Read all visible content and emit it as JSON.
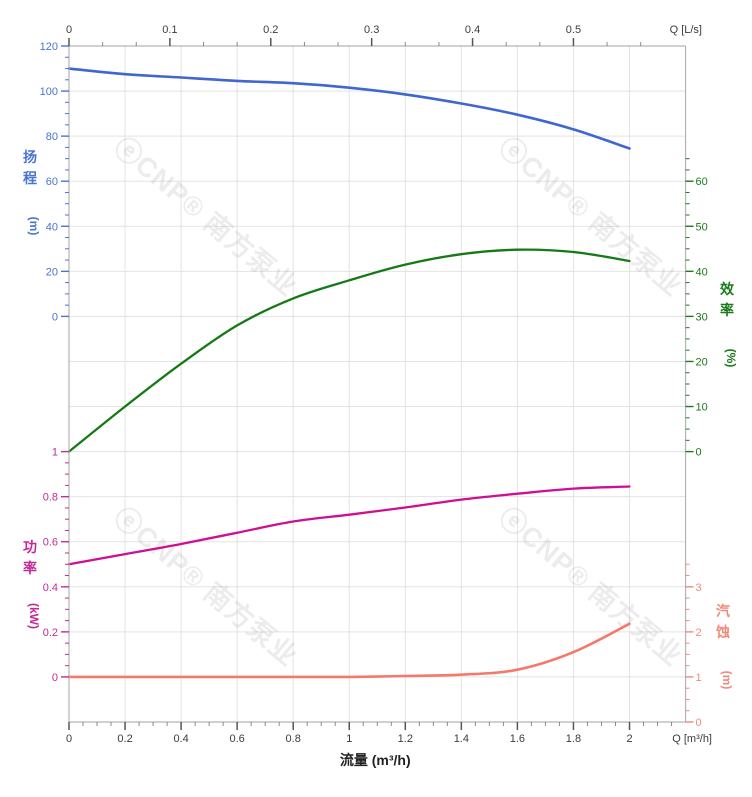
{
  "chart_data": {
    "type": "line",
    "title": "",
    "grid": true,
    "x": [
      0,
      0.2,
      0.4,
      0.6,
      0.8,
      1.0,
      1.2,
      1.4,
      1.6,
      1.8,
      2.0
    ],
    "x_axis_bottom": {
      "label": "流量 (m³/h)",
      "corner_label": "Q [m³/h]",
      "min": 0,
      "max": 2,
      "major_step": 0.2,
      "minor_step": 0.05,
      "minor_extent": 2.15,
      "axis_extent": 2.2,
      "color": "#3c3c3c"
    },
    "x_axis_top": {
      "corner_label": "Q [L/s]",
      "min": 0,
      "max": 0.5,
      "major_step": 0.1,
      "minor_divisions": 3,
      "minor_extent": 0.57,
      "m3h_per_lps": 3.6,
      "color": "#3c3c3c"
    },
    "y_axes": {
      "head": {
        "label": "扬程",
        "unit": "(m)",
        "side": "left",
        "color": "#4a74d2",
        "min": 0,
        "max": 120,
        "major_step": 20,
        "minor_step": 5,
        "minor_extent": 120,
        "zero_row": 6,
        "units_per_row": 20
      },
      "eff": {
        "label": "效率",
        "unit": "(%)",
        "side": "right",
        "color": "#1b7a1b",
        "min": 0,
        "max": 60,
        "major_step": 10,
        "minor_step": 2.5,
        "minor_extent": 65,
        "zero_row": 9,
        "units_per_row": 10
      },
      "power": {
        "label": "功率",
        "unit": "(kW)",
        "side": "left",
        "color": "#c42a96",
        "min": 0,
        "max": 1,
        "major_step": 0.2,
        "minor_step": 0.05,
        "minor_extent": 1,
        "zero_row": 14,
        "units_per_row": 0.2
      },
      "npsh": {
        "label": "汽蚀",
        "unit": "(m)",
        "side": "right",
        "color": "#f08a7c",
        "min": 0,
        "max": 3,
        "major_step": 1,
        "minor_step": 0.25,
        "minor_extent": 3.5,
        "zero_row": 15,
        "units_per_row": 1
      }
    },
    "series": [
      {
        "name": "head-curve",
        "axis": "head",
        "color": "#4066d0",
        "width": 2.6,
        "values": [
          110,
          107.5,
          106,
          104.5,
          103.5,
          101.5,
          98.5,
          94.5,
          89.5,
          83,
          74.5
        ]
      },
      {
        "name": "efficiency-curve",
        "axis": "eff",
        "color": "#157a15",
        "width": 2.3,
        "values": [
          0,
          10,
          19.5,
          28,
          34,
          38,
          41.5,
          43.8,
          44.8,
          44.3,
          42.3
        ]
      },
      {
        "name": "power-curve",
        "axis": "power",
        "color": "#ce0f92",
        "width": 2.3,
        "values": [
          0.5,
          0.545,
          0.59,
          0.64,
          0.69,
          0.72,
          0.752,
          0.787,
          0.813,
          0.836,
          0.845
        ]
      },
      {
        "name": "npsh-curve",
        "axis": "npsh",
        "color": "#f5796a",
        "width": 2.6,
        "values": [
          1.0,
          1.0,
          1.0,
          1.0,
          1.0,
          1.0,
          1.02,
          1.05,
          1.16,
          1.55,
          2.18
        ]
      }
    ],
    "watermark": {
      "text": "ⓔCNP® 南方泵业",
      "color": "#888888"
    }
  }
}
